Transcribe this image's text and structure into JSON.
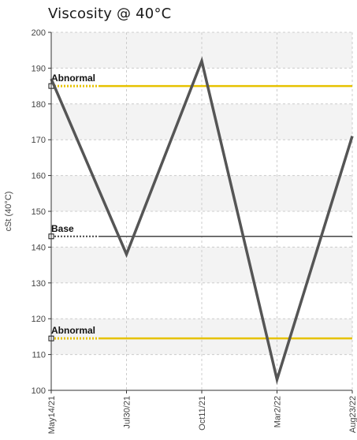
{
  "chart_data": {
    "type": "line",
    "title": "Viscosity @ 40°C",
    "ylabel": "cSt (40°C)",
    "xlabel": "",
    "ylim": [
      100,
      200
    ],
    "yticks": [
      100,
      110,
      120,
      130,
      140,
      150,
      160,
      170,
      180,
      190,
      200
    ],
    "categories": [
      "May14/21",
      "Jul30/21",
      "Oct11/21",
      "Mar2/22",
      "Aug23/22"
    ],
    "series": [
      {
        "values": [
          187,
          138,
          192,
          103,
          171
        ]
      }
    ],
    "reference_lines": [
      {
        "label": "Abnormal",
        "value": 185
      },
      {
        "label": "Base",
        "value": 143
      },
      {
        "label": "Abnormal",
        "value": 114.5
      }
    ],
    "grid": true,
    "colors": {
      "series": "#555555",
      "abnormal": "#e6c200",
      "base": "#444444",
      "band": "#f3f3f3",
      "grid": "#cccccc"
    }
  }
}
